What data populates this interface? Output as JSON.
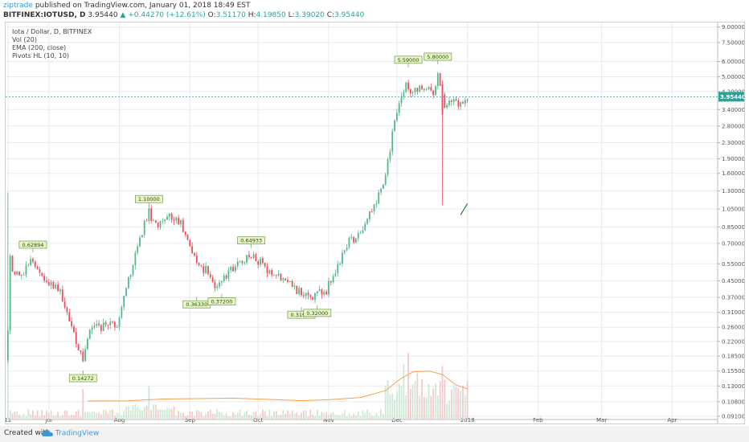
{
  "header": {
    "author": "ziptrade",
    "published": "published on TradingView.com, January 01, 2018 18:49 EST",
    "symbol": "BITFINEX:IOTUSD, D",
    "last": "3.95440",
    "change": "+0.44270 (+12.61%)",
    "o_label": "O:",
    "o": "3.51170",
    "h_label": "H:",
    "h": "4.19850",
    "l_label": "L:",
    "l": "3.39020",
    "c_label": "C:",
    "c": "3.95440"
  },
  "legend": [
    "Iota / Dollar, D, BITFINEX",
    "Vol (20)",
    "EMA (200, close)",
    "Pivots HL (10, 10)"
  ],
  "footer": {
    "created": "Created with",
    "brand": "TradingView"
  },
  "colors": {
    "up": "#53b987",
    "down": "#eb4d5c",
    "ema": "#f5a04b",
    "lastPrice": "#26a69a",
    "grid": "#e8eaed",
    "pivotFill": "#e8f5c8",
    "pivotBorder": "#5d8a2b",
    "brand": "#3d99d4"
  },
  "chart_data": {
    "type": "candlestick",
    "scale": "log",
    "ylim": [
      0.0875,
      9.5
    ],
    "y_ticks": [
      "9.00000",
      "7.50000",
      "6.00000",
      "5.00000",
      "4.20000",
      "3.40000",
      "2.80000",
      "2.30000",
      "1.90000",
      "1.60000",
      "1.30000",
      "1.05000",
      "0.85000",
      "0.70000",
      "0.55000",
      "0.45000",
      "0.37000",
      "0.31000",
      "0.26000",
      "0.22000",
      "0.18500",
      "0.15500",
      "0.13000",
      "0.10800",
      "0.09100"
    ],
    "x_start": "2017-06-12",
    "x_end": "2018-04-21",
    "x_ticks": [
      {
        "date": "2017-06-13",
        "label": "12"
      },
      {
        "date": "2017-07-01",
        "label": "Jul"
      },
      {
        "date": "2017-08-01",
        "label": "Aug"
      },
      {
        "date": "2017-09-01",
        "label": "Sep"
      },
      {
        "date": "2017-10-01",
        "label": "Oct"
      },
      {
        "date": "2017-11-01",
        "label": "Nov"
      },
      {
        "date": "2017-12-01",
        "label": "Dec"
      },
      {
        "date": "2018-01-01",
        "label": "2018"
      },
      {
        "date": "2018-02-01",
        "label": "Feb"
      },
      {
        "date": "2018-03-01",
        "label": "Mar"
      },
      {
        "date": "2018-04-01",
        "label": "Apr"
      }
    ],
    "last_price": "3.95440",
    "pivots": [
      {
        "date": "2017-06-24",
        "price": 0.63,
        "label": "0.62894",
        "pos": "above"
      },
      {
        "date": "2017-07-16",
        "price": 0.156,
        "label": "0.14272",
        "pos": "below"
      },
      {
        "date": "2017-08-14",
        "price": 1.08,
        "label": "1.10000",
        "pos": "above"
      },
      {
        "date": "2017-09-04",
        "price": 0.373,
        "label": "0.36330",
        "pos": "below"
      },
      {
        "date": "2017-09-15",
        "price": 0.386,
        "label": "0.37200",
        "pos": "below"
      },
      {
        "date": "2017-09-28",
        "price": 0.662,
        "label": "0.64933",
        "pos": "above"
      },
      {
        "date": "2017-10-20",
        "price": 0.33,
        "label": "0.31930",
        "pos": "below"
      },
      {
        "date": "2017-10-27",
        "price": 0.337,
        "label": "0.32000",
        "pos": "below"
      },
      {
        "date": "2017-12-06",
        "price": 5.59,
        "label": "5.59000",
        "pos": "above"
      },
      {
        "date": "2017-12-19",
        "price": 5.8,
        "label": "5.80000",
        "pos": "above"
      }
    ],
    "waypoints": [
      [
        "2017-06-13",
        0.25
      ],
      [
        "2017-06-14",
        0.58
      ],
      [
        "2017-06-16",
        0.48
      ],
      [
        "2017-06-20",
        0.5
      ],
      [
        "2017-06-24",
        0.58
      ],
      [
        "2017-06-30",
        0.46
      ],
      [
        "2017-07-05",
        0.42
      ],
      [
        "2017-07-10",
        0.29
      ],
      [
        "2017-07-14",
        0.2
      ],
      [
        "2017-07-16",
        0.17
      ],
      [
        "2017-07-20",
        0.27
      ],
      [
        "2017-07-25",
        0.26
      ],
      [
        "2017-07-31",
        0.27
      ],
      [
        "2017-08-05",
        0.45
      ],
      [
        "2017-08-09",
        0.65
      ],
      [
        "2017-08-12",
        0.87
      ],
      [
        "2017-08-14",
        1.02
      ],
      [
        "2017-08-17",
        0.85
      ],
      [
        "2017-08-22",
        0.97
      ],
      [
        "2017-08-26",
        0.95
      ],
      [
        "2017-08-30",
        0.8
      ],
      [
        "2017-09-02",
        0.63
      ],
      [
        "2017-09-06",
        0.52
      ],
      [
        "2017-09-09",
        0.5
      ],
      [
        "2017-09-13",
        0.42
      ],
      [
        "2017-09-17",
        0.49
      ],
      [
        "2017-09-22",
        0.55
      ],
      [
        "2017-09-28",
        0.61
      ],
      [
        "2017-10-03",
        0.54
      ],
      [
        "2017-10-09",
        0.49
      ],
      [
        "2017-10-14",
        0.46
      ],
      [
        "2017-10-20",
        0.38
      ],
      [
        "2017-10-25",
        0.37
      ],
      [
        "2017-10-31",
        0.4
      ],
      [
        "2017-11-05",
        0.55
      ],
      [
        "2017-11-10",
        0.71
      ],
      [
        "2017-11-14",
        0.77
      ],
      [
        "2017-11-18",
        0.92
      ],
      [
        "2017-11-22",
        1.12
      ],
      [
        "2017-11-26",
        1.55
      ],
      [
        "2017-11-29",
        2.5
      ],
      [
        "2017-12-02",
        3.6
      ],
      [
        "2017-12-05",
        4.7
      ],
      [
        "2017-12-08",
        4.0
      ],
      [
        "2017-12-11",
        4.6
      ],
      [
        "2017-12-14",
        4.3
      ],
      [
        "2017-12-17",
        4.1
      ],
      [
        "2017-12-19",
        5.0
      ],
      [
        "2017-12-22",
        3.4
      ],
      [
        "2017-12-25",
        3.9
      ],
      [
        "2017-12-28",
        3.5
      ],
      [
        "2018-01-01",
        3.95
      ]
    ],
    "special_candles": [
      {
        "date": "2017-12-21",
        "open": 4.6,
        "high": 4.8,
        "low": 1.1,
        "close": 3.2
      }
    ],
    "ema_200": [
      [
        "2017-07-18",
        0.1088
      ],
      [
        "2017-08-05",
        0.109
      ],
      [
        "2017-08-20",
        0.1115
      ],
      [
        "2017-09-05",
        0.112
      ],
      [
        "2017-09-20",
        0.1125
      ],
      [
        "2017-10-05",
        0.111
      ],
      [
        "2017-10-20",
        0.1093
      ],
      [
        "2017-11-01",
        0.1105
      ],
      [
        "2017-11-15",
        0.1135
      ],
      [
        "2017-11-26",
        0.123
      ],
      [
        "2017-12-02",
        0.14
      ],
      [
        "2017-12-08",
        0.1535
      ],
      [
        "2017-12-15",
        0.155
      ],
      [
        "2017-12-21",
        0.149
      ],
      [
        "2017-12-27",
        0.1315
      ],
      [
        "2018-01-01",
        0.1257
      ]
    ],
    "volume_spikes": [
      [
        "2017-06-13",
        1.0
      ],
      [
        "2017-07-16",
        0.33
      ],
      [
        "2017-08-14",
        0.36
      ],
      [
        "2017-12-04",
        0.6
      ],
      [
        "2017-12-06",
        0.72
      ],
      [
        "2017-12-10",
        0.5
      ],
      [
        "2017-12-20",
        0.42
      ],
      [
        "2017-12-21",
        0.58
      ]
    ]
  }
}
